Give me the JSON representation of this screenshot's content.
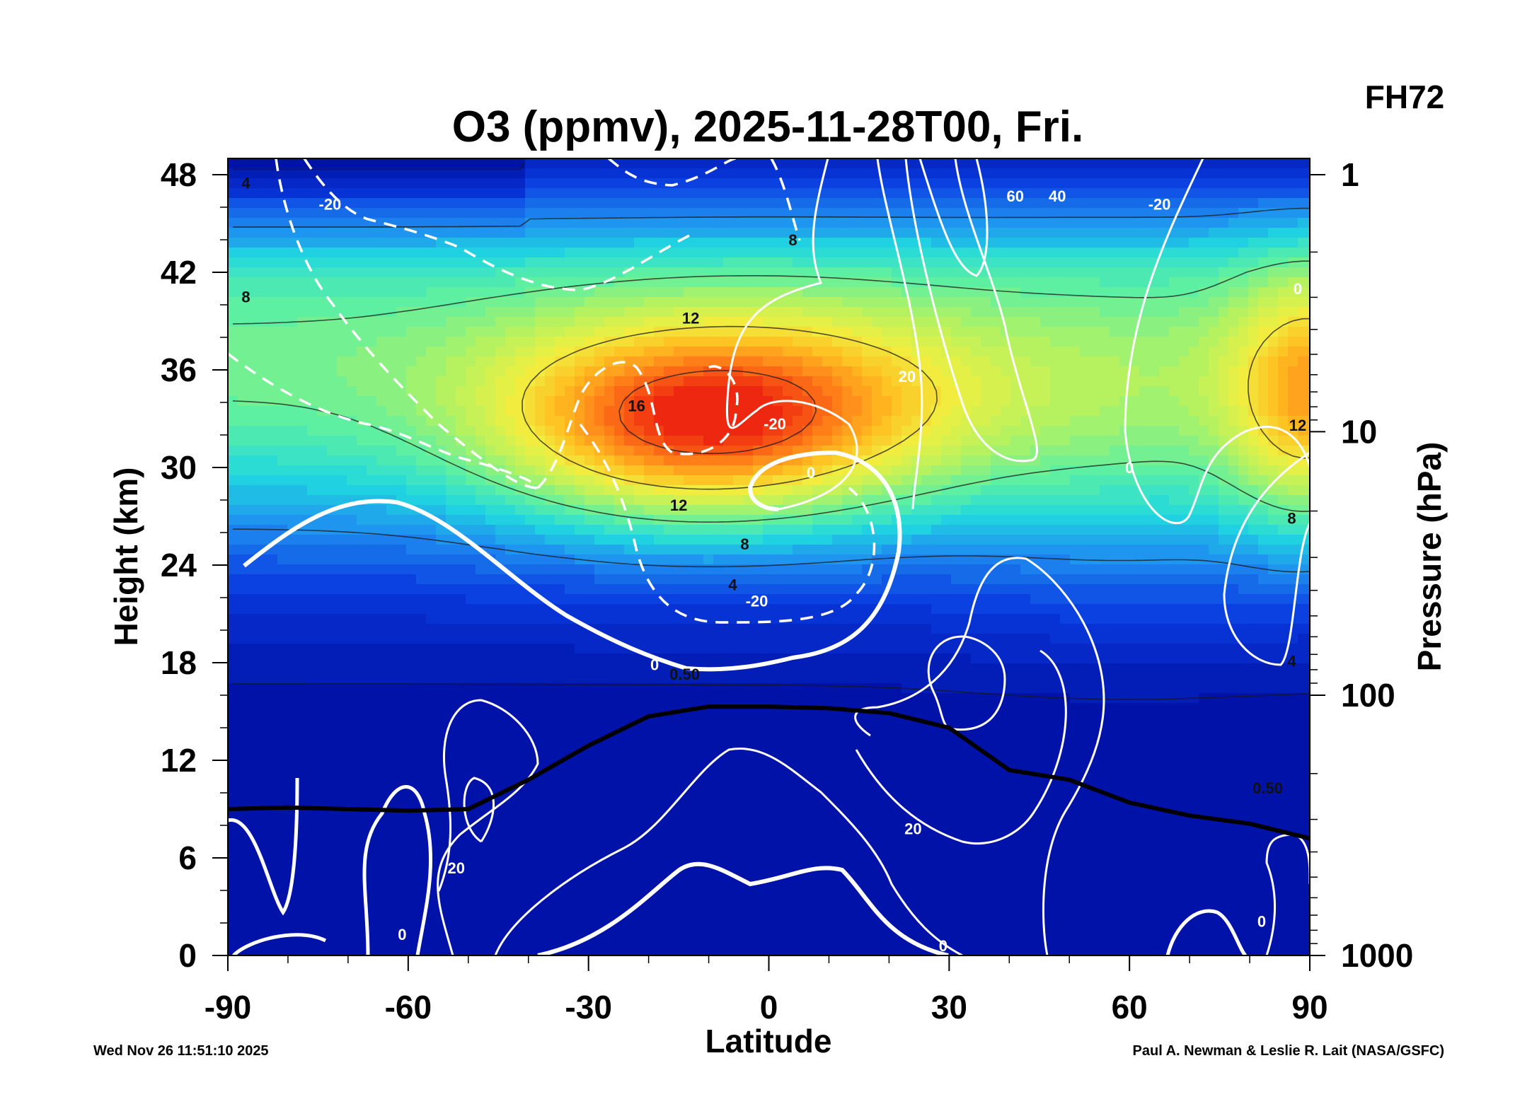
{
  "title": "O3 (ppmv), 2025-11-28T00, Fri.",
  "forecast_hour": "FH72",
  "footer": {
    "timestamp": "Wed Nov 26 11:51:10 2025",
    "credit": "Paul A. Newman & Leslie R. Lait (NASA/GSFC)"
  },
  "chart_data": {
    "type": "heatmap",
    "title": "O3 (ppmv), 2025-11-28T00, Fri.",
    "xlabel": "Latitude",
    "ylabel": "Height (km)",
    "y2label": "Pressure (hPa)",
    "xlim": [
      -90,
      90
    ],
    "ylim": [
      0,
      49
    ],
    "x_ticks": [
      -90,
      -60,
      -30,
      0,
      30,
      60,
      90
    ],
    "y_ticks": [
      0,
      6,
      12,
      18,
      24,
      30,
      36,
      42,
      48
    ],
    "y2_ticks": [
      {
        "label": "1",
        "height_km": 48.0
      },
      {
        "label": "10",
        "height_km": 32.2
      },
      {
        "label": "100",
        "height_km": 16.0
      },
      {
        "label": "1000",
        "height_km": 0.0
      }
    ],
    "colormap": [
      "#0012a8",
      "#0a3be0",
      "#1e8cf0",
      "#20d8e0",
      "#5ff0a0",
      "#b4f260",
      "#f0f040",
      "#ffbe20",
      "#ff7a18",
      "#ee2810"
    ],
    "color_range_ppmv": [
      0,
      17
    ],
    "ozone_max": {
      "lat": -15,
      "height_km": 32.5,
      "value_ppmv": 16
    },
    "ozone_contours_ppmv": [
      0.5,
      4,
      8,
      12,
      16
    ],
    "ozone_contour_labels": [
      {
        "text": "4",
        "lat": -87,
        "height_km": 47.5
      },
      {
        "text": "8",
        "lat": -87,
        "height_km": 40.5
      },
      {
        "text": "8",
        "lat": 4,
        "height_km": 44.0
      },
      {
        "text": "12",
        "lat": -13,
        "height_km": 39.2
      },
      {
        "text": "16",
        "lat": -22,
        "height_km": 33.8
      },
      {
        "text": "12",
        "lat": -15,
        "height_km": 27.7
      },
      {
        "text": "8",
        "lat": -4,
        "height_km": 25.3
      },
      {
        "text": "4",
        "lat": -6,
        "height_km": 22.8
      },
      {
        "text": "0.50",
        "lat": -14,
        "height_km": 17.3
      },
      {
        "text": "12",
        "lat": 88,
        "height_km": 32.6
      },
      {
        "text": "8",
        "lat": 87,
        "height_km": 26.9
      },
      {
        "text": "4",
        "lat": 87,
        "height_km": 18.1
      },
      {
        "text": "0.50",
        "lat": 83,
        "height_km": 10.3
      }
    ],
    "wind_contour_labels": [
      {
        "text": "-20",
        "lat": -73,
        "height_km": 46.2
      },
      {
        "text": "-20",
        "lat": -2,
        "height_km": 21.8
      },
      {
        "text": "-20",
        "lat": 1,
        "height_km": 32.7
      },
      {
        "text": "0",
        "lat": 7,
        "height_km": 29.7
      },
      {
        "text": "0",
        "lat": -19,
        "height_km": 17.9
      },
      {
        "text": "20",
        "lat": 23,
        "height_km": 35.6
      },
      {
        "text": "20",
        "lat": 24,
        "height_km": 7.8
      },
      {
        "text": "20",
        "lat": -52,
        "height_km": 5.4
      },
      {
        "text": "40",
        "lat": 48,
        "height_km": 46.7
      },
      {
        "text": "60",
        "lat": 41,
        "height_km": 46.7
      },
      {
        "text": "-20",
        "lat": 65,
        "height_km": 46.2
      },
      {
        "text": "0",
        "lat": 60,
        "height_km": 30.0
      },
      {
        "text": "0",
        "lat": 88,
        "height_km": 41.0
      },
      {
        "text": "0",
        "lat": -61,
        "height_km": 1.3
      },
      {
        "text": "0",
        "lat": 29,
        "height_km": 0.6
      },
      {
        "text": "0",
        "lat": 82,
        "height_km": 2.1
      }
    ],
    "tropopause_km": [
      [
        -90,
        9.0
      ],
      [
        -80,
        9.1
      ],
      [
        -60,
        8.9
      ],
      [
        -50,
        9.0
      ],
      [
        -40,
        10.8
      ],
      [
        -30,
        12.9
      ],
      [
        -20,
        14.7
      ],
      [
        -10,
        15.3
      ],
      [
        0,
        15.3
      ],
      [
        10,
        15.2
      ],
      [
        20,
        14.9
      ],
      [
        30,
        14.0
      ],
      [
        40,
        11.4
      ],
      [
        50,
        10.8
      ],
      [
        60,
        9.4
      ],
      [
        70,
        8.6
      ],
      [
        80,
        8.1
      ],
      [
        90,
        7.2
      ]
    ]
  }
}
